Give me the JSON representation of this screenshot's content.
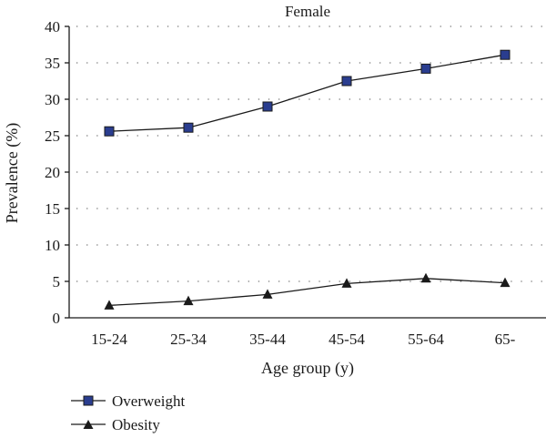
{
  "chart_data": {
    "type": "line",
    "title": "Female",
    "xlabel": "Age group (y)",
    "ylabel": "Prevalence (%)",
    "categories": [
      "15-24",
      "25-34",
      "35-44",
      "45-54",
      "55-64",
      "65-"
    ],
    "ylim": [
      0,
      40
    ],
    "yticks": [
      0,
      5,
      10,
      15,
      20,
      25,
      30,
      35,
      40
    ],
    "grid": "horizontal dotted",
    "legend_position": "bottom-left",
    "series": [
      {
        "name": "Overweight",
        "marker": "square",
        "marker_color": "#2a3d8f",
        "line_color": "#1a1a1a",
        "values": [
          25.6,
          26.1,
          29.0,
          32.5,
          34.2,
          36.1
        ]
      },
      {
        "name": "Obesity",
        "marker": "triangle",
        "marker_color": "#1a1a1a",
        "line_color": "#1a1a1a",
        "values": [
          1.7,
          2.3,
          3.2,
          4.7,
          5.4,
          4.8
        ]
      }
    ]
  }
}
